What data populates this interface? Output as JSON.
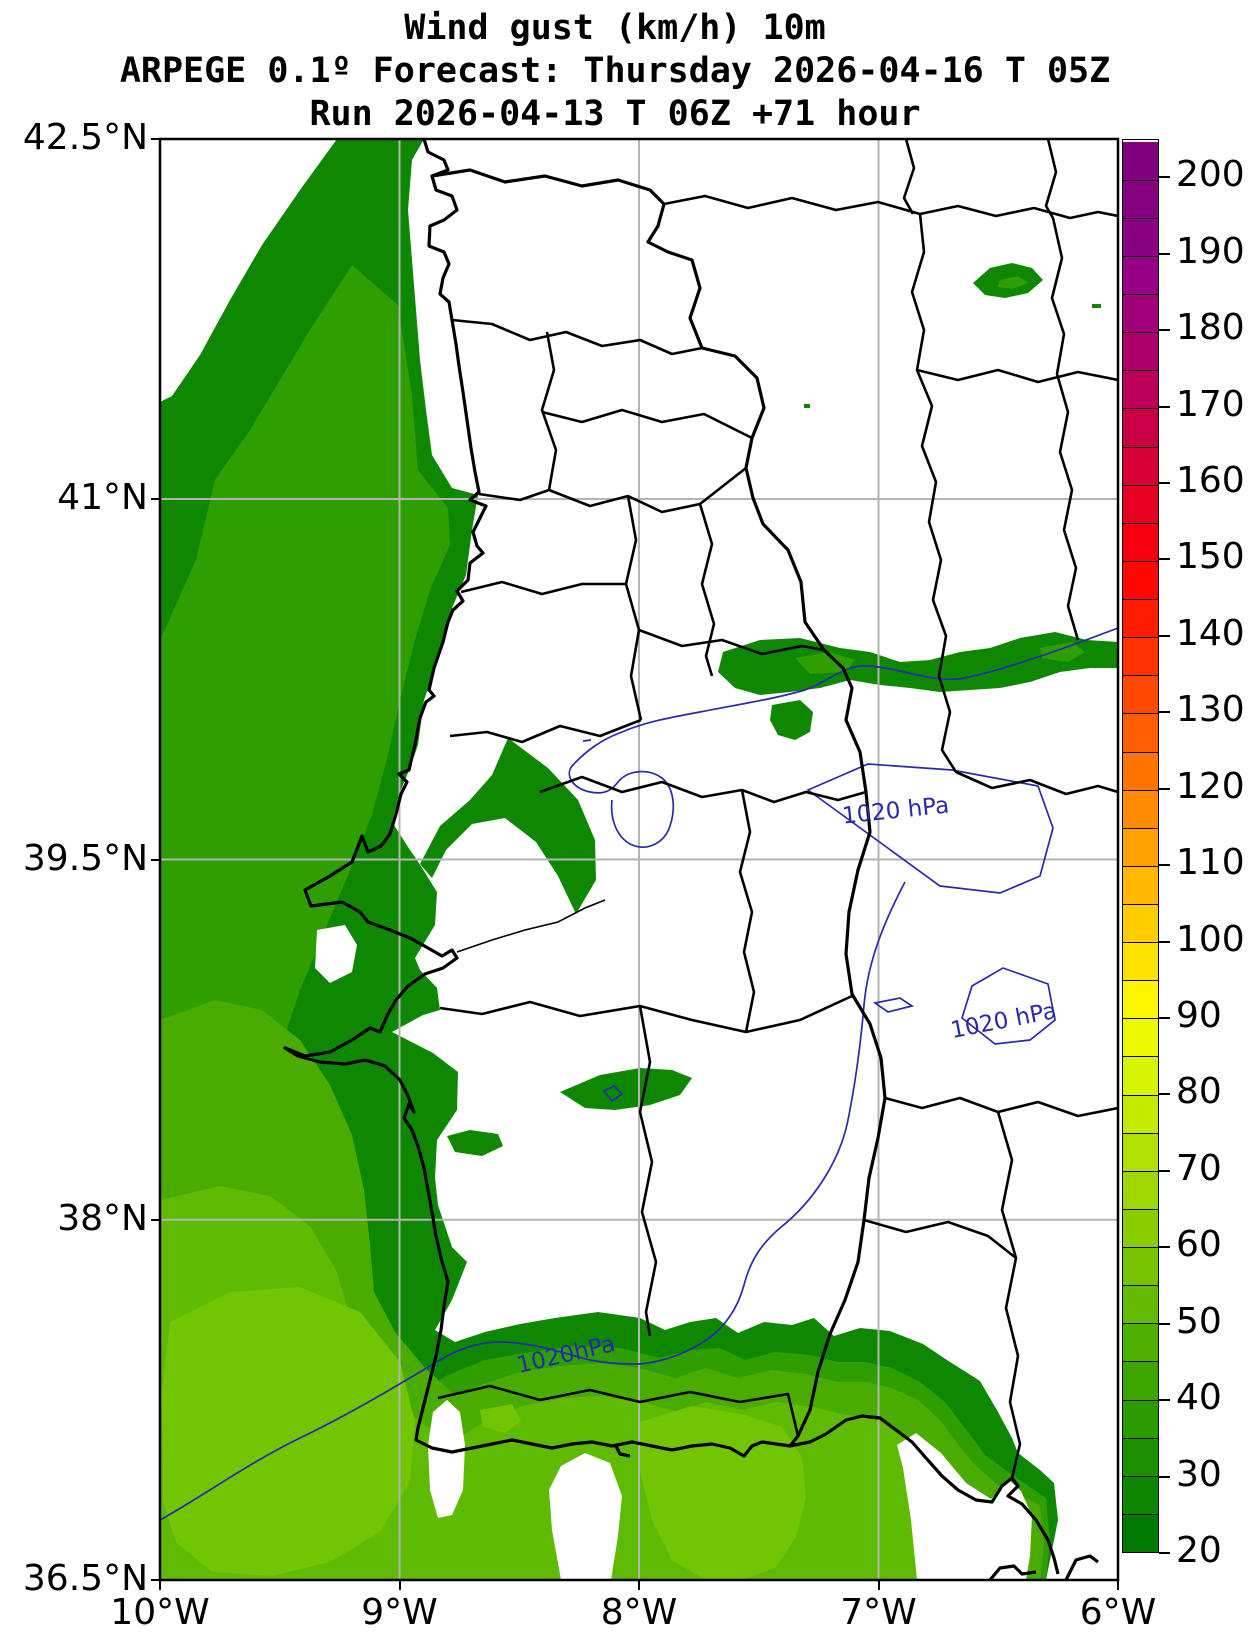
{
  "title": {
    "line1": "Wind gust (km/h) 10m",
    "line2": "ARPEGE 0.1º Forecast: Thursday 2026-04-16 T 05Z",
    "line3": "Run 2026-04-13 T 06Z +71 hour"
  },
  "axes": {
    "y_ticks": [
      {
        "label": "42.5°N",
        "lat": 42.5
      },
      {
        "label": "41°N",
        "lat": 41.0
      },
      {
        "label": "39.5°N",
        "lat": 39.5
      },
      {
        "label": "38°N",
        "lat": 38.0
      },
      {
        "label": "36.5°N",
        "lat": 36.5
      }
    ],
    "x_ticks": [
      {
        "label": "10°W",
        "lon": -10
      },
      {
        "label": "9°W",
        "lon": -9
      },
      {
        "label": "8°W",
        "lon": -8
      },
      {
        "label": "7°W",
        "lon": -7
      },
      {
        "label": "6°W",
        "lon": -6
      }
    ]
  },
  "colorbar": {
    "unit": "km/h",
    "min": 20,
    "max": 205,
    "step": 5,
    "tick_values": [
      20,
      30,
      40,
      50,
      60,
      70,
      80,
      90,
      100,
      110,
      120,
      130,
      140,
      150,
      160,
      170,
      180,
      190,
      200
    ],
    "segment_colors_bottom_to_top": [
      "#007a00",
      "#0d8500",
      "#1b9100",
      "#2a9c00",
      "#3da500",
      "#50b000",
      "#63ba00",
      "#76c400",
      "#8ace00",
      "#9dd800",
      "#b1e100",
      "#c4ea00",
      "#d8f300",
      "#ecfa00",
      "#fdf500",
      "#ffe300",
      "#ffcd00",
      "#ffb700",
      "#ffa100",
      "#ff8b00",
      "#ff7400",
      "#ff5e00",
      "#ff4800",
      "#ff3200",
      "#ff1c00",
      "#ff0600",
      "#f4000f",
      "#e60022",
      "#d80034",
      "#ca0047",
      "#bc0059",
      "#ae006b",
      "#a10078",
      "#960086",
      "#8c0083",
      "#850081",
      "#800080"
    ]
  },
  "isobars": {
    "labels": [
      {
        "text": "1020 hPa"
      },
      {
        "text": "1020 hPa"
      },
      {
        "text": "1020hPa"
      }
    ],
    "color": "#2a2aa8",
    "value_hpa": 1020
  },
  "chart_data": {
    "type": "heatmap",
    "subtype": "filled_contour_weather_map",
    "variable": "Wind gust (km/h) at 10 m",
    "model": "ARPEGE 0.1º",
    "forecast_valid": "Thursday 2026-04-16 T 05Z",
    "run": "2026-04-13 T 06Z",
    "lead_hours": 71,
    "region": {
      "lon_min": -10,
      "lon_max": -6,
      "lat_min": 36.5,
      "lat_max": 42.5,
      "area": "Portugal / western Iberia"
    },
    "color_scale_kmh": {
      "min": 20,
      "max": 205,
      "interval": 5,
      "palette": "green (20) → yellow (85) → orange (110) → red (145) → magenta (175) → purple (205)"
    },
    "gridlines": {
      "lon_deg": [
        -9,
        -8,
        -7
      ],
      "lat_deg": [
        38,
        39.5,
        41
      ],
      "color": "#b4b4b4"
    },
    "depicted_values": [
      {
        "feature": "Atlantic ocean band off NW Portuguese coast",
        "gust_kmh": "20-40"
      },
      {
        "feature": "Ocean west and southwest of Lisbon",
        "gust_kmh": "30-55"
      },
      {
        "feature": "Southwest ocean corner and Gulf of Cádiz core",
        "gust_kmh": "40-60"
      },
      {
        "feature": "Coastal band around Lisbon / Cabo da Roca peninsula",
        "gust_kmh": "20-30"
      },
      {
        "feature": "Inland band near 39.8°N along Tejo / Spanish border",
        "gust_kmh": "20-30"
      },
      {
        "feature": "Small inland patches (Alentejo, 38.6°N and 38.3°N)",
        "gust_kmh": "20-25"
      },
      {
        "feature": "Small patch NE Spain area (~41.9°N 6.6°W)",
        "gust_kmh": "20-25"
      },
      {
        "feature": "Algarve and southern Andalusian coast blob",
        "gust_kmh": "20-55"
      },
      {
        "feature": "Interior Iberia (white)",
        "gust_kmh": "< 20"
      }
    ],
    "isobars_hpa": [
      1020
    ],
    "legend_position": "right colorbar"
  }
}
